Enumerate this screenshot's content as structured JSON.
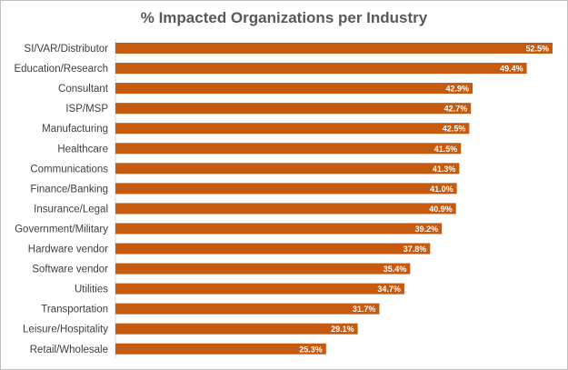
{
  "chart_data": {
    "type": "bar",
    "orientation": "horizontal",
    "title": "% Impacted Organizations per Industry",
    "xlabel": "",
    "ylabel": "",
    "xlim": [
      0,
      55
    ],
    "grid": false,
    "bar_color": "#C55A11",
    "categories": [
      "SI/VAR/Distributor",
      "Education/Research",
      "Consultant",
      "ISP/MSP",
      "Manufacturing",
      "Healthcare",
      "Communications",
      "Finance/Banking",
      "Insurance/Legal",
      "Government/Military",
      "Hardware vendor",
      "Software vendor",
      "Utilities",
      "Transportation",
      "Leisure/Hospitality",
      "Retail/Wholesale"
    ],
    "values": [
      52.5,
      49.4,
      42.9,
      42.7,
      42.5,
      41.5,
      41.3,
      41.0,
      40.9,
      39.2,
      37.8,
      35.4,
      34.7,
      31.7,
      29.1,
      25.3
    ],
    "value_labels": [
      "52.5%",
      "49.4%",
      "42.9%",
      "42.7%",
      "42.5%",
      "41.5%",
      "41.3%",
      "41.0%",
      "40.9%",
      "39.2%",
      "37.8%",
      "35.4%",
      "34.7%",
      "31.7%",
      "29.1%",
      "25.3%"
    ]
  }
}
